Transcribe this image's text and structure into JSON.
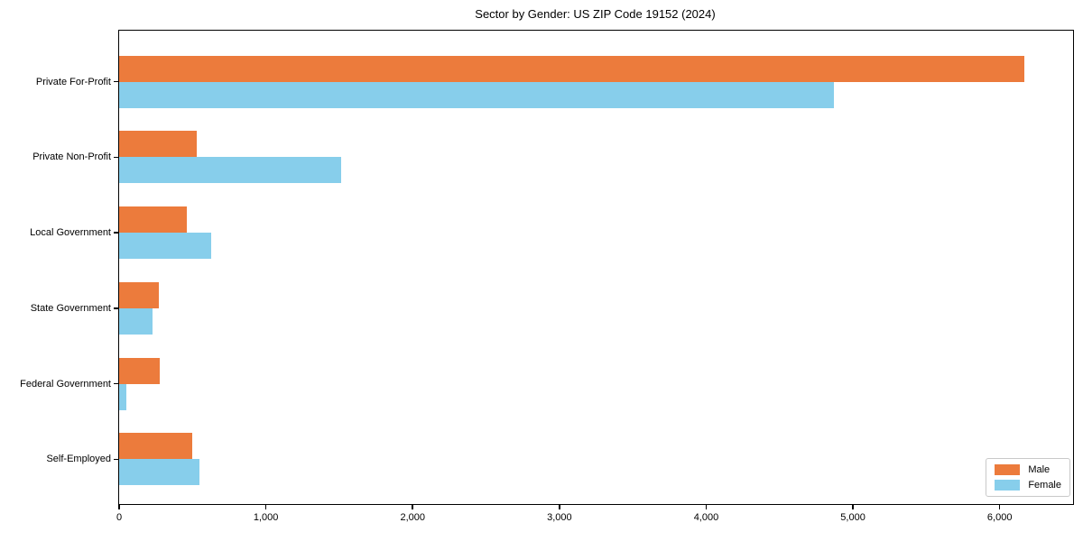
{
  "chart_data": {
    "type": "bar",
    "orientation": "horizontal",
    "title": "Sector by Gender: US ZIP Code 19152 (2024)",
    "categories": [
      "Private For-Profit",
      "Private Non-Profit",
      "Local Government",
      "State Government",
      "Federal Government",
      "Self-Employed"
    ],
    "series": [
      {
        "name": "Male",
        "color": "#ec7b3c",
        "values": [
          6170,
          530,
          460,
          270,
          275,
          500
        ]
      },
      {
        "name": "Female",
        "color": "#87ceeb",
        "values": [
          4870,
          1510,
          625,
          225,
          50,
          550
        ]
      }
    ],
    "xlabel": "",
    "ylabel": "",
    "xlim": [
      0,
      6500
    ],
    "xticks": [
      0,
      1000,
      2000,
      3000,
      4000,
      5000,
      6000
    ],
    "xtick_labels": [
      "0",
      "1,000",
      "2,000",
      "3,000",
      "4,000",
      "5,000",
      "6,000"
    ],
    "grid": false,
    "legend_position": "lower right",
    "background_color": "#ffffff",
    "spine_color": "#000000"
  }
}
